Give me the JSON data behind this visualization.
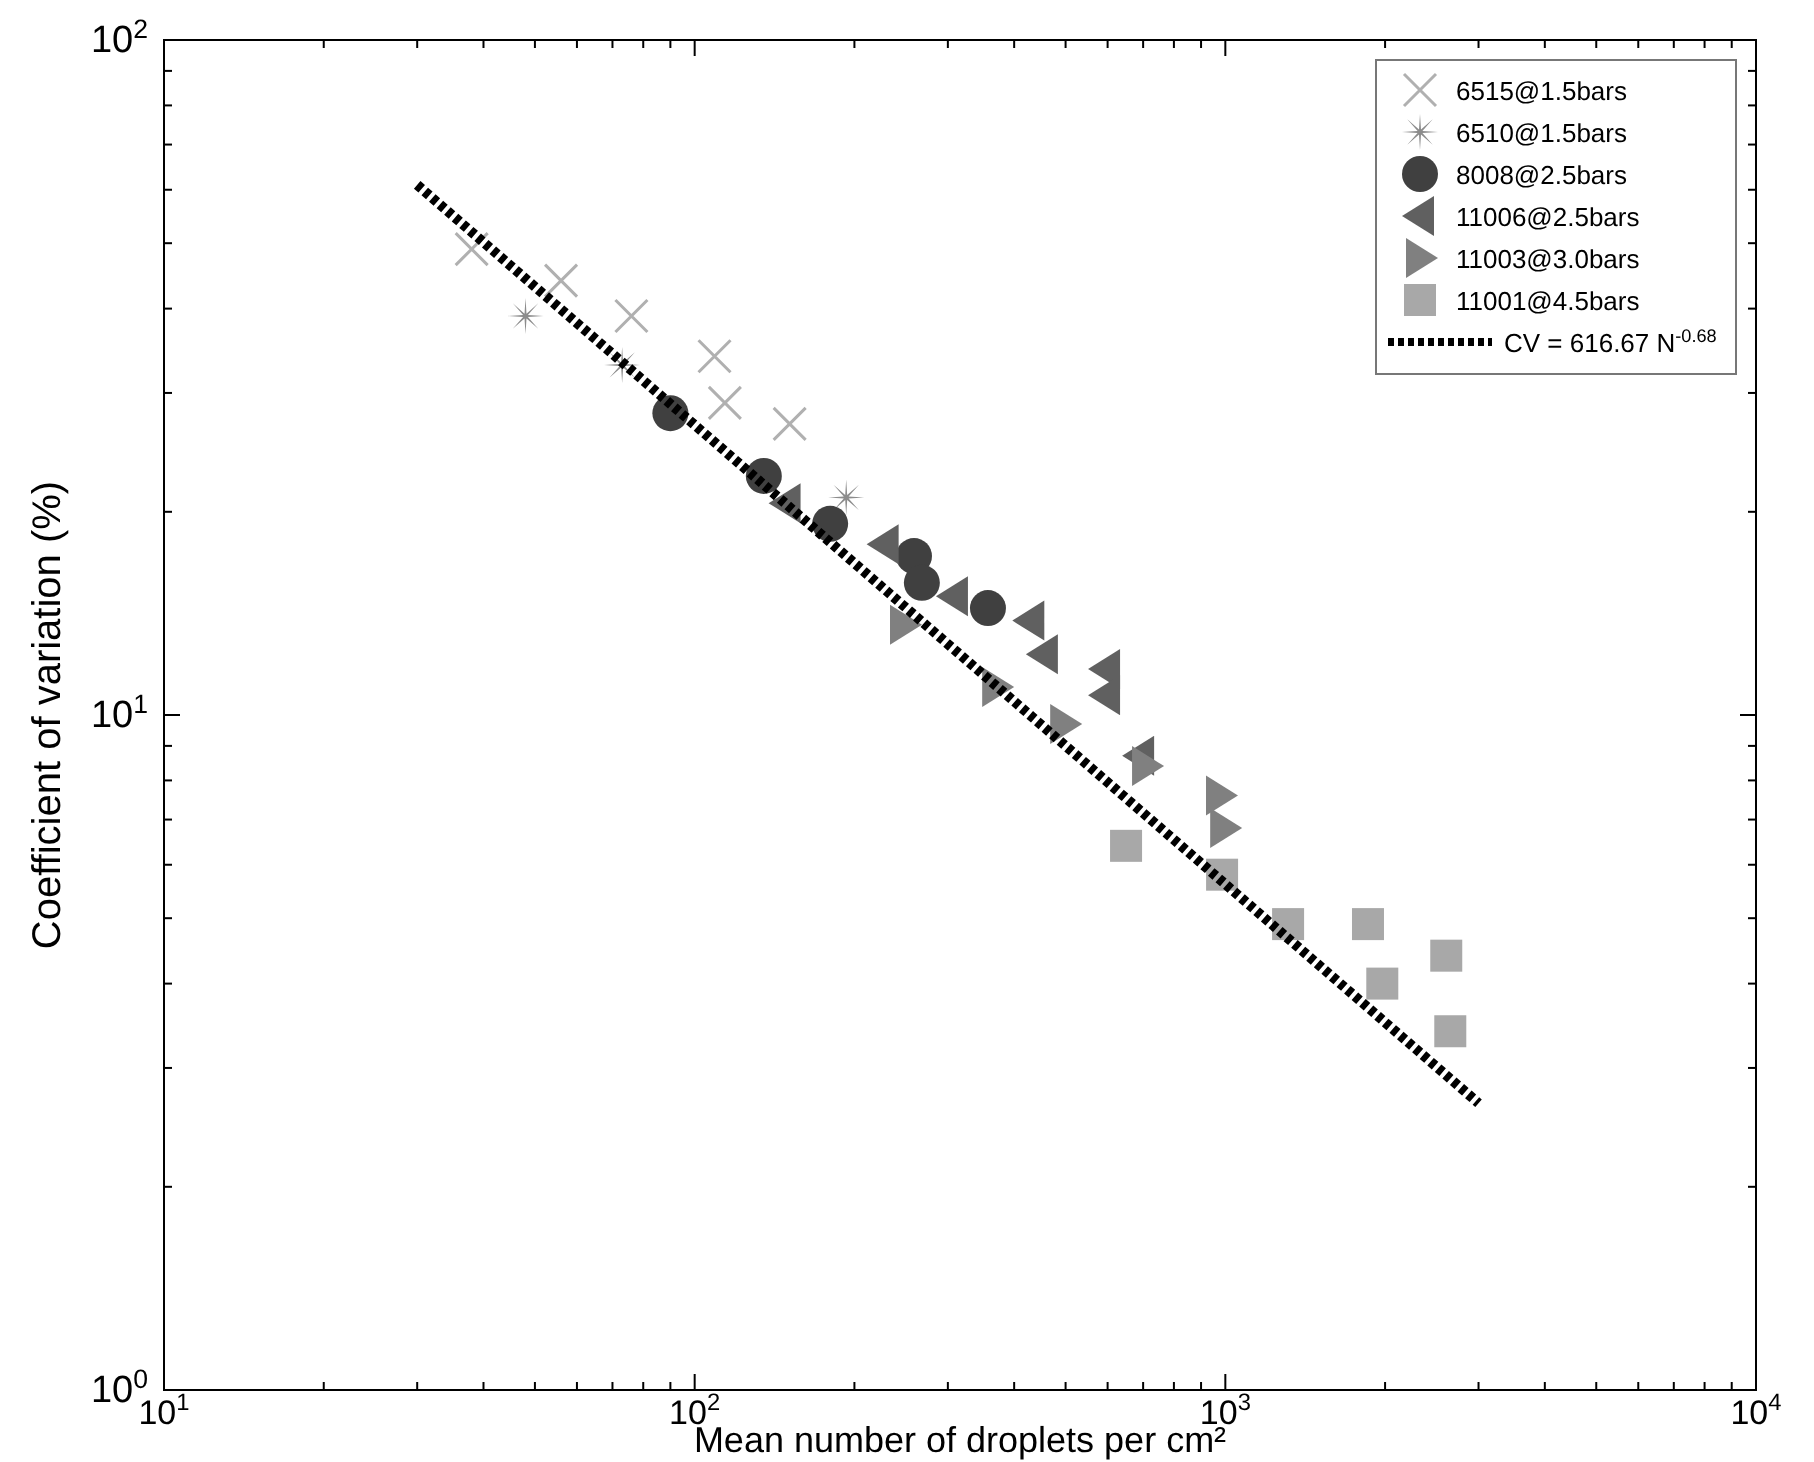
{
  "chart_data": {
    "type": "scatter",
    "xlabel": "Mean number of droplets per cm²",
    "ylabel": "Coefficient of variation (%)",
    "log": "xy",
    "grid": false,
    "legend": "top right",
    "xlim": [
      10,
      10000
    ],
    "ylim": [
      1,
      100
    ],
    "xticks": [
      {
        "value": 10,
        "label": "10$^{1}$"
      },
      {
        "value": 20,
        "label": null
      },
      {
        "value": 30,
        "label": null
      },
      {
        "value": 40,
        "label": null
      },
      {
        "value": 50,
        "label": null
      },
      {
        "value": 60,
        "label": null
      },
      {
        "value": 70,
        "label": null
      },
      {
        "value": 80,
        "label": null
      },
      {
        "value": 90,
        "label": null
      },
      {
        "value": 100,
        "label": "10$^{2}$"
      },
      {
        "value": 200,
        "label": null
      },
      {
        "value": 300,
        "label": null
      },
      {
        "value": 400,
        "label": null
      },
      {
        "value": 500,
        "label": null
      },
      {
        "value": 600,
        "label": null
      },
      {
        "value": 700,
        "label": null
      },
      {
        "value": 800,
        "label": null
      },
      {
        "value": 900,
        "label": null
      },
      {
        "value": 1000,
        "label": "10$^{3}$"
      },
      {
        "value": 2000,
        "label": null
      },
      {
        "value": 3000,
        "label": null
      },
      {
        "value": 4000,
        "label": null
      },
      {
        "value": 5000,
        "label": null
      },
      {
        "value": 6000,
        "label": null
      },
      {
        "value": 7000,
        "label": null
      },
      {
        "value": 8000,
        "label": null
      },
      {
        "value": 9000,
        "label": null
      },
      {
        "value": 10000,
        "label": "10$^{4}$"
      }
    ],
    "yticks": [
      {
        "value": 1,
        "label": "10$^{0}$"
      },
      {
        "value": 2,
        "label": null
      },
      {
        "value": 3,
        "label": null
      },
      {
        "value": 4,
        "label": null
      },
      {
        "value": 5,
        "label": null
      },
      {
        "value": 6,
        "label": null
      },
      {
        "value": 7,
        "label": null
      },
      {
        "value": 8,
        "label": null
      },
      {
        "value": 9,
        "label": null
      },
      {
        "value": 10,
        "label": "10$^{1}$"
      },
      {
        "value": 20,
        "label": null
      },
      {
        "value": 30,
        "label": null
      },
      {
        "value": 40,
        "label": null
      },
      {
        "value": 50,
        "label": null
      },
      {
        "value": 60,
        "label": null
      },
      {
        "value": 70,
        "label": null
      },
      {
        "value": 80,
        "label": null
      },
      {
        "value": 90,
        "label": null
      },
      {
        "value": 100,
        "label": "10$^{2}$"
      }
    ],
    "series": [
      {
        "name": "6515@1.5bars",
        "color": "#b0b0b0",
        "marker": "cross",
        "x": [
          38,
          56,
          76,
          109,
          114,
          151
        ],
        "values": [
          49,
          44,
          39,
          34,
          29,
          27
        ]
      },
      {
        "name": "6510@1.5bars",
        "color": "#8c8c8c",
        "marker": "star",
        "x": [
          48,
          73,
          193
        ],
        "values": [
          39,
          33,
          21
        ]
      },
      {
        "name": "8008@2.5bars",
        "color": "#404040",
        "marker": "circle",
        "x": [
          90,
          135,
          180,
          259,
          268,
          357
        ],
        "values": [
          28,
          22.6,
          19.2,
          17.2,
          15.7,
          14.4
        ]
      },
      {
        "name": "11006@2.5bars",
        "color": "#606060",
        "marker": "triangle-left",
        "x": [
          149,
          228,
          308,
          429,
          455,
          596,
          596,
          691
        ],
        "values": [
          20.6,
          17.9,
          15,
          13.8,
          12.3,
          11.7,
          10.7,
          8.7
        ]
      },
      {
        "name": "11003@3.0bars",
        "color": "#808080",
        "marker": "triangle-right",
        "x": [
          248,
          370,
          497,
          709,
          977,
          995
        ],
        "values": [
          13.6,
          11,
          9.7,
          8.4,
          7.6,
          6.8
        ]
      },
      {
        "name": "11001@4.5bars",
        "color": "#a8a8a8",
        "marker": "square",
        "x": [
          650,
          986,
          1313,
          1857,
          1976,
          2608,
          2654
        ],
        "values": [
          6.4,
          5.8,
          4.9,
          4.9,
          4.0,
          4.4,
          3.4
        ]
      },
      {
        "name": "CV = 616.67 N$^{-0.68}$",
        "type": "line",
        "color": "#000000",
        "line_style": "dotted",
        "marker": "none",
        "x": [
          30,
          3000
        ],
        "values": [
          61,
          2.66
        ]
      }
    ]
  }
}
